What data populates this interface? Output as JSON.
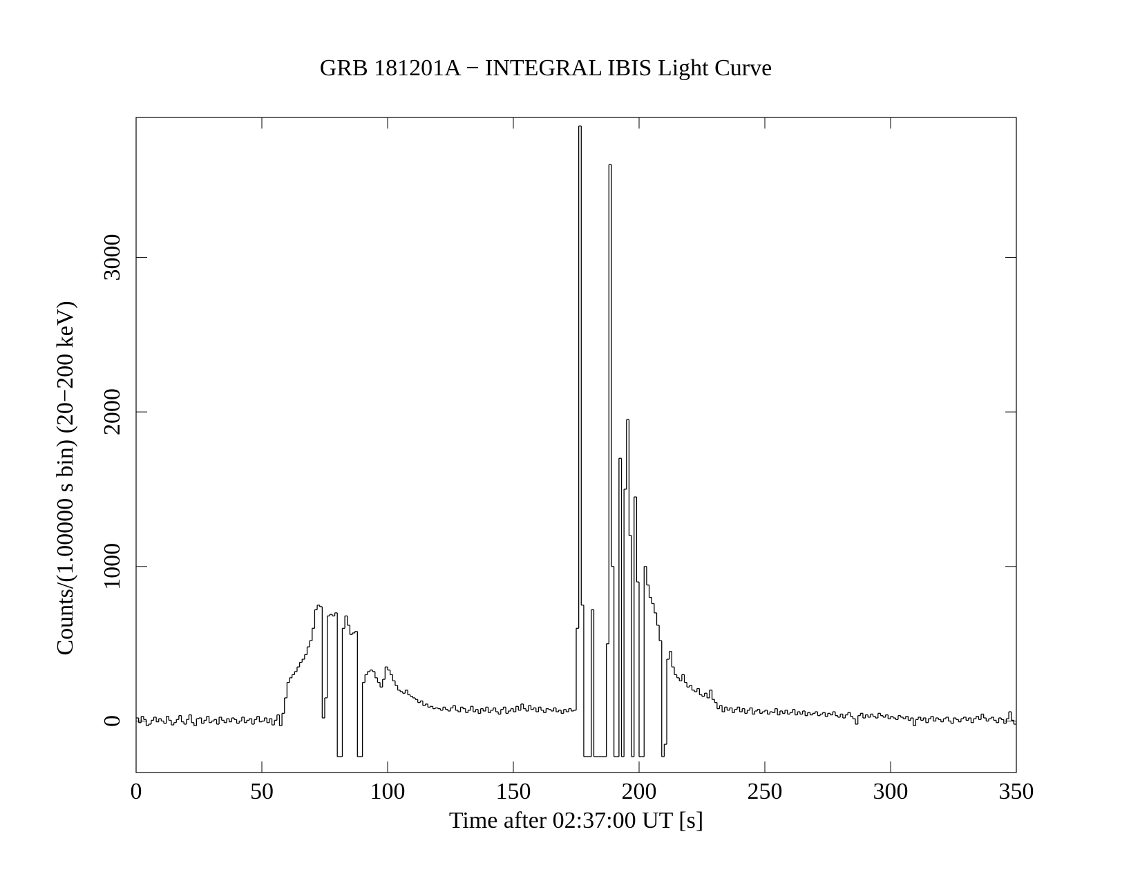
{
  "chart_data": {
    "type": "step",
    "title": "GRB 181201A − INTEGRAL IBIS Light Curve",
    "x_label": "Time after 02:37:00 UT [s]",
    "y_label": "Counts/(1.00000 s bin)  (20−200 keV)",
    "color": "#000000",
    "xlim": [
      0,
      350
    ],
    "xticks": [
      0,
      50,
      100,
      150,
      200,
      250,
      300,
      350
    ],
    "ylim": [
      -333,
      3905
    ],
    "yticks": [
      0,
      1000,
      2000,
      3000
    ],
    "x": [
      0,
      1,
      2,
      3,
      4,
      5,
      6,
      7,
      8,
      9,
      10,
      11,
      12,
      13,
      14,
      15,
      16,
      17,
      18,
      19,
      20,
      21,
      22,
      23,
      24,
      25,
      26,
      27,
      28,
      29,
      30,
      31,
      32,
      33,
      34,
      35,
      36,
      37,
      38,
      39,
      40,
      41,
      42,
      43,
      44,
      45,
      46,
      47,
      48,
      49,
      50,
      51,
      52,
      53,
      54,
      55,
      56,
      57,
      58,
      59,
      60,
      61,
      62,
      63,
      64,
      65,
      66,
      67,
      68,
      69,
      70,
      71,
      72,
      73,
      74,
      75,
      76,
      77,
      78,
      79,
      80,
      81,
      82,
      83,
      84,
      85,
      86,
      87,
      88,
      89,
      90,
      91,
      92,
      93,
      94,
      95,
      96,
      97,
      98,
      99,
      100,
      101,
      102,
      103,
      104,
      105,
      106,
      107,
      108,
      109,
      110,
      111,
      112,
      113,
      114,
      115,
      116,
      117,
      118,
      119,
      120,
      121,
      122,
      123,
      124,
      125,
      126,
      127,
      128,
      129,
      130,
      131,
      132,
      133,
      134,
      135,
      136,
      137,
      138,
      139,
      140,
      141,
      142,
      143,
      144,
      145,
      146,
      147,
      148,
      149,
      150,
      151,
      152,
      153,
      154,
      155,
      156,
      157,
      158,
      159,
      160,
      161,
      162,
      163,
      164,
      165,
      166,
      167,
      168,
      169,
      170,
      171,
      172,
      173,
      174,
      175,
      176,
      177,
      178,
      179,
      180,
      181,
      182,
      183,
      184,
      185,
      186,
      187,
      188,
      189,
      190,
      191,
      192,
      193,
      194,
      195,
      196,
      197,
      198,
      199,
      200,
      201,
      202,
      203,
      204,
      205,
      206,
      207,
      208,
      209,
      210,
      211,
      212,
      213,
      214,
      215,
      216,
      217,
      218,
      219,
      220,
      221,
      222,
      223,
      224,
      225,
      226,
      227,
      228,
      229,
      230,
      231,
      232,
      233,
      234,
      235,
      236,
      237,
      238,
      239,
      240,
      241,
      242,
      243,
      244,
      245,
      246,
      247,
      248,
      249,
      250,
      251,
      252,
      253,
      254,
      255,
      256,
      257,
      258,
      259,
      260,
      261,
      262,
      263,
      264,
      265,
      266,
      267,
      268,
      269,
      270,
      271,
      272,
      273,
      274,
      275,
      276,
      277,
      278,
      279,
      280,
      281,
      282,
      283,
      284,
      285,
      286,
      287,
      288,
      289,
      290,
      291,
      292,
      293,
      294,
      295,
      296,
      297,
      298,
      299,
      300,
      301,
      302,
      303,
      304,
      305,
      306,
      307,
      308,
      309,
      310,
      311,
      312,
      313,
      314,
      315,
      316,
      317,
      318,
      319,
      320,
      321,
      322,
      323,
      324,
      325,
      326,
      327,
      328,
      329,
      330,
      331,
      332,
      333,
      334,
      335,
      336,
      337,
      338,
      339,
      340,
      341,
      342,
      343,
      344,
      345,
      346,
      347,
      348,
      349
    ],
    "values": [
      20,
      -10,
      30,
      10,
      -30,
      -20,
      5,
      25,
      -5,
      15,
      0,
      -15,
      30,
      5,
      -25,
      -10,
      10,
      35,
      -5,
      -20,
      10,
      40,
      -10,
      -30,
      15,
      20,
      -15,
      5,
      30,
      -10,
      0,
      10,
      -20,
      25,
      5,
      -10,
      15,
      -5,
      20,
      10,
      -15,
      0,
      25,
      -10,
      5,
      15,
      -20,
      10,
      30,
      -5,
      0,
      20,
      -10,
      15,
      -25,
      5,
      40,
      -30,
      50,
      150,
      250,
      280,
      300,
      320,
      350,
      380,
      400,
      430,
      480,
      520,
      600,
      720,
      750,
      740,
      20,
      150,
      680,
      690,
      680,
      700,
      -230,
      -230,
      600,
      680,
      620,
      560,
      570,
      580,
      -230,
      -230,
      250,
      300,
      320,
      330,
      320,
      280,
      250,
      220,
      270,
      350,
      330,
      300,
      260,
      230,
      200,
      190,
      180,
      200,
      170,
      160,
      150,
      140,
      120,
      130,
      100,
      110,
      90,
      95,
      80,
      85,
      80,
      70,
      90,
      75,
      65,
      85,
      100,
      70,
      60,
      90,
      80,
      55,
      70,
      95,
      60,
      75,
      50,
      80,
      65,
      90,
      55,
      70,
      85,
      60,
      45,
      75,
      90,
      50,
      65,
      80,
      60,
      95,
      70,
      110,
      80,
      65,
      100,
      75,
      85,
      60,
      90,
      70,
      55,
      80,
      75,
      65,
      85,
      60,
      70,
      50,
      75,
      60,
      80,
      65,
      70,
      600,
      3850,
      750,
      -230,
      -230,
      -230,
      720,
      -230,
      -230,
      -230,
      -230,
      -230,
      500,
      3600,
      1000,
      -230,
      -230,
      1700,
      -230,
      1500,
      1950,
      1200,
      -230,
      1450,
      900,
      -230,
      -230,
      1000,
      880,
      800,
      760,
      700,
      620,
      520,
      -230,
      -150,
      400,
      450,
      350,
      300,
      280,
      260,
      300,
      250,
      220,
      230,
      200,
      190,
      210,
      170,
      160,
      180,
      150,
      200,
      140,
      120,
      80,
      100,
      60,
      90,
      70,
      85,
      55,
      75,
      90,
      60,
      80,
      50,
      70,
      85,
      45,
      65,
      75,
      50,
      60,
      70,
      45,
      60,
      55,
      80,
      40,
      65,
      50,
      70,
      45,
      55,
      75,
      40,
      60,
      45,
      65,
      35,
      55,
      40,
      50,
      60,
      35,
      45,
      55,
      30,
      50,
      40,
      60,
      35,
      25,
      45,
      20,
      40,
      55,
      30,
      15,
      -20,
      35,
      50,
      20,
      40,
      25,
      45,
      30,
      20,
      50,
      35,
      25,
      40,
      15,
      30,
      20,
      10,
      35,
      25,
      15,
      30,
      5,
      20,
      -30,
      10,
      25,
      5,
      20,
      -10,
      15,
      30,
      0,
      20,
      10,
      -5,
      15,
      25,
      0,
      -15,
      20,
      10,
      -5,
      15,
      25,
      5,
      20,
      -10,
      15,
      30,
      10,
      45,
      20,
      0,
      15,
      25,
      5,
      -10,
      20,
      10,
      -15,
      15,
      60,
      5,
      -20
    ]
  }
}
